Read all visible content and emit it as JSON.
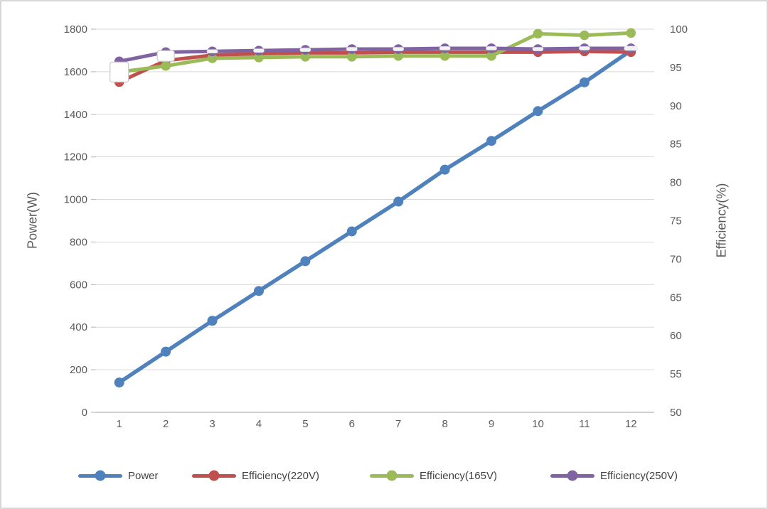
{
  "chart_data": {
    "type": "line",
    "x": [
      1,
      2,
      3,
      4,
      5,
      6,
      7,
      8,
      9,
      10,
      11,
      12
    ],
    "series": [
      {
        "name": "Power",
        "axis": "left",
        "color": "#4F81BD",
        "values": [
          140,
          285,
          430,
          570,
          710,
          850,
          990,
          1140,
          1275,
          1415,
          1550,
          1700
        ]
      },
      {
        "name": "Efficiency(220V)",
        "axis": "right",
        "color": "#C0504D",
        "values": [
          93.1,
          95.9,
          96.6,
          96.8,
          96.9,
          96.9,
          97.0,
          97.0,
          97.0,
          97.0,
          97.1,
          97.0
        ]
      },
      {
        "name": "Efficiency(165V)",
        "axis": "right",
        "color": "#9BBB59",
        "values": [
          94.4,
          95.2,
          96.2,
          96.3,
          96.4,
          96.4,
          96.5,
          96.5,
          96.5,
          99.4,
          99.2,
          99.5
        ]
      },
      {
        "name": "Efficiency(250V)",
        "axis": "right",
        "color": "#8064A2",
        "values": [
          95.8,
          97.0,
          97.1,
          97.2,
          97.3,
          97.4,
          97.4,
          97.5,
          97.5,
          97.4,
          97.5,
          97.5
        ],
        "overlay_dash_from_x": 3
      }
    ],
    "left_axis": {
      "label": "Power(W)",
      "min": 0,
      "max": 1800,
      "step": 200,
      "ticks": [
        0,
        200,
        400,
        600,
        800,
        1000,
        1200,
        1400,
        1600,
        1800
      ]
    },
    "right_axis": {
      "label": "Efficiency(%)",
      "min": 50,
      "max": 100,
      "step": 5,
      "ticks": [
        50,
        55,
        60,
        65,
        70,
        75,
        80,
        85,
        90,
        95,
        100
      ]
    },
    "extra_markers": [
      {
        "type": "white-square",
        "x": 1,
        "value": 94.4,
        "size": "large"
      },
      {
        "type": "white-square",
        "x": 2,
        "value": 96.5,
        "size": "small"
      }
    ],
    "grid": "horizontal",
    "legend_position": "bottom",
    "grid_color": "#D9D9D9",
    "axis_line_color": "#BFBFBF",
    "tick_text_color": "#595959",
    "legend_text_color": "#404040"
  }
}
